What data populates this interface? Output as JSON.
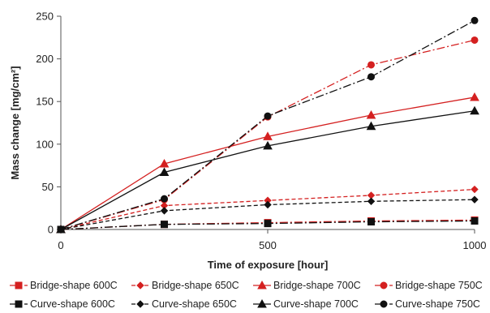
{
  "chart_data": {
    "type": "line",
    "xlabel": "Time of exposure [hour]",
    "ylabel": "Mass change [mg/cm²]",
    "xlim": [
      0,
      1000
    ],
    "ylim": [
      0,
      250
    ],
    "xticks": [
      0,
      500,
      1000
    ],
    "yticks": [
      0,
      50,
      100,
      150,
      200,
      250
    ],
    "grid": false,
    "legend_position": "bottom",
    "series": [
      {
        "name": "Bridge-shape 600C",
        "color": "#d42020",
        "marker": "square",
        "dash": "10,3,2,3",
        "x": [
          0,
          250,
          500,
          750,
          1000
        ],
        "y": [
          0,
          6,
          8,
          10,
          11
        ]
      },
      {
        "name": "Bridge-shape 650C",
        "color": "#d42020",
        "marker": "diamond",
        "dash": "5,3",
        "x": [
          0,
          250,
          500,
          750,
          1000
        ],
        "y": [
          0,
          28,
          34,
          40,
          47
        ]
      },
      {
        "name": "Bridge-shape 700C",
        "color": "#d42020",
        "marker": "triangle",
        "dash": "",
        "x": [
          0,
          250,
          500,
          750,
          1000
        ],
        "y": [
          0,
          77,
          109,
          134,
          155
        ]
      },
      {
        "name": "Bridge-shape 750C",
        "color": "#d42020",
        "marker": "circle",
        "dash": "10,3,2,3",
        "x": [
          0,
          250,
          500,
          750,
          1000
        ],
        "y": [
          0,
          35,
          132,
          193,
          222
        ]
      },
      {
        "name": "Curve-shape 600C",
        "color": "#111111",
        "marker": "square",
        "dash": "10,3,2,3",
        "x": [
          0,
          250,
          500,
          750,
          1000
        ],
        "y": [
          0,
          6,
          7,
          9,
          10
        ]
      },
      {
        "name": "Curve-shape 650C",
        "color": "#111111",
        "marker": "diamond",
        "dash": "5,3",
        "x": [
          0,
          250,
          500,
          750,
          1000
        ],
        "y": [
          0,
          22,
          29,
          33,
          35
        ]
      },
      {
        "name": "Curve-shape 700C",
        "color": "#111111",
        "marker": "triangle",
        "dash": "",
        "x": [
          0,
          250,
          500,
          750,
          1000
        ],
        "y": [
          0,
          67,
          98,
          121,
          139
        ]
      },
      {
        "name": "Curve-shape 750C",
        "color": "#111111",
        "marker": "circle",
        "dash": "10,3,2,3",
        "x": [
          0,
          250,
          500,
          750,
          1000
        ],
        "y": [
          0,
          36,
          133,
          179,
          245
        ]
      }
    ]
  }
}
